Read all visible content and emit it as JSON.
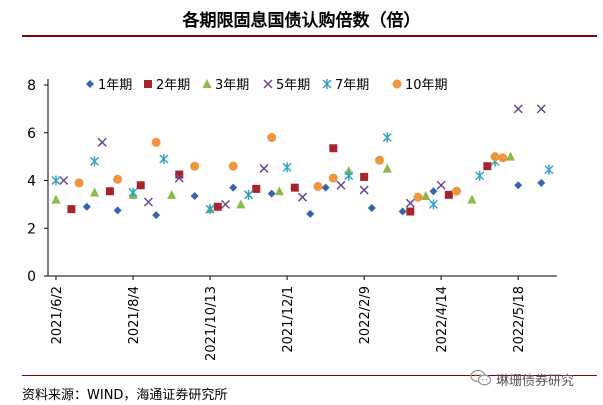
{
  "header": {
    "title": "各期限固息国债认购倍数（倍）",
    "source": "资料来源：WIND，海通证券研究所",
    "watermark": "琳珊债券研究"
  },
  "chart_data": {
    "type": "scatter",
    "title": "各期限固息国债认购倍数（倍）",
    "xlabel": "",
    "ylabel": "",
    "ylim": [
      0,
      8
    ],
    "yticks": [
      0,
      2,
      4,
      6,
      8
    ],
    "x_tick_labels": [
      "2021/6/2",
      "2021/8/4",
      "2021/10/13",
      "2021/12/1",
      "2022/2/9",
      "2022/4/14",
      "2022/5/18"
    ],
    "x_tick_index": [
      0,
      10,
      20,
      30,
      40,
      50,
      60
    ],
    "x_range": [
      0,
      64
    ],
    "legend_position": "top",
    "series": [
      {
        "name": "1年期",
        "marker": "diamond",
        "color": "#3564ad",
        "points": [
          [
            4,
            2.9
          ],
          [
            8,
            2.75
          ],
          [
            13,
            2.55
          ],
          [
            18,
            3.35
          ],
          [
            23,
            3.7
          ],
          [
            28,
            3.45
          ],
          [
            33,
            2.6
          ],
          [
            35,
            3.7
          ],
          [
            41,
            2.85
          ],
          [
            45,
            2.7
          ],
          [
            49,
            3.55
          ],
          [
            60,
            3.8
          ],
          [
            63,
            3.9
          ]
        ]
      },
      {
        "name": "2年期",
        "marker": "square",
        "color": "#a5252d",
        "points": [
          [
            2,
            2.8
          ],
          [
            7,
            3.55
          ],
          [
            11,
            3.8
          ],
          [
            16,
            4.25
          ],
          [
            21,
            2.9
          ],
          [
            26,
            3.65
          ],
          [
            31,
            3.7
          ],
          [
            36,
            5.35
          ],
          [
            40,
            4.15
          ],
          [
            46,
            2.7
          ],
          [
            51,
            3.4
          ],
          [
            56,
            4.6
          ]
        ]
      },
      {
        "name": "3年期",
        "marker": "triangle",
        "color": "#8db84a",
        "points": [
          [
            0,
            3.2
          ],
          [
            5,
            3.5
          ],
          [
            10,
            3.4
          ],
          [
            15,
            3.4
          ],
          [
            20,
            2.8
          ],
          [
            24,
            3.0
          ],
          [
            29,
            3.55
          ],
          [
            38,
            4.4
          ],
          [
            43,
            4.5
          ],
          [
            48,
            3.35
          ],
          [
            54,
            3.2
          ],
          [
            59,
            5.0
          ]
        ]
      },
      {
        "name": "5年期",
        "marker": "x",
        "color": "#6a4a8c",
        "points": [
          [
            1,
            4.0
          ],
          [
            6,
            5.6
          ],
          [
            12,
            3.1
          ],
          [
            16,
            4.1
          ],
          [
            22,
            3.0
          ],
          [
            27,
            4.5
          ],
          [
            32,
            3.3
          ],
          [
            37,
            3.8
          ],
          [
            40,
            3.6
          ],
          [
            46,
            3.05
          ],
          [
            50,
            3.8
          ],
          [
            60,
            7.0
          ],
          [
            63,
            7.0
          ]
        ]
      },
      {
        "name": "7年期",
        "marker": "asterisk",
        "color": "#35a3c0",
        "points": [
          [
            0,
            4.0
          ],
          [
            5,
            4.8
          ],
          [
            10,
            3.5
          ],
          [
            14,
            4.9
          ],
          [
            20,
            2.8
          ],
          [
            25,
            3.4
          ],
          [
            30,
            4.55
          ],
          [
            38,
            4.2
          ],
          [
            43,
            5.8
          ],
          [
            49,
            3.0
          ],
          [
            55,
            4.2
          ],
          [
            57,
            4.8
          ],
          [
            64,
            4.45
          ]
        ]
      },
      {
        "name": "10年期",
        "marker": "circle",
        "color": "#f0953f",
        "points": [
          [
            3,
            3.9
          ],
          [
            8,
            4.05
          ],
          [
            13,
            5.6
          ],
          [
            18,
            4.6
          ],
          [
            23,
            4.6
          ],
          [
            28,
            5.8
          ],
          [
            34,
            3.75
          ],
          [
            36,
            4.1
          ],
          [
            42,
            4.85
          ],
          [
            47,
            3.3
          ],
          [
            52,
            3.55
          ],
          [
            57,
            5.0
          ],
          [
            58,
            4.95
          ]
        ]
      }
    ]
  }
}
